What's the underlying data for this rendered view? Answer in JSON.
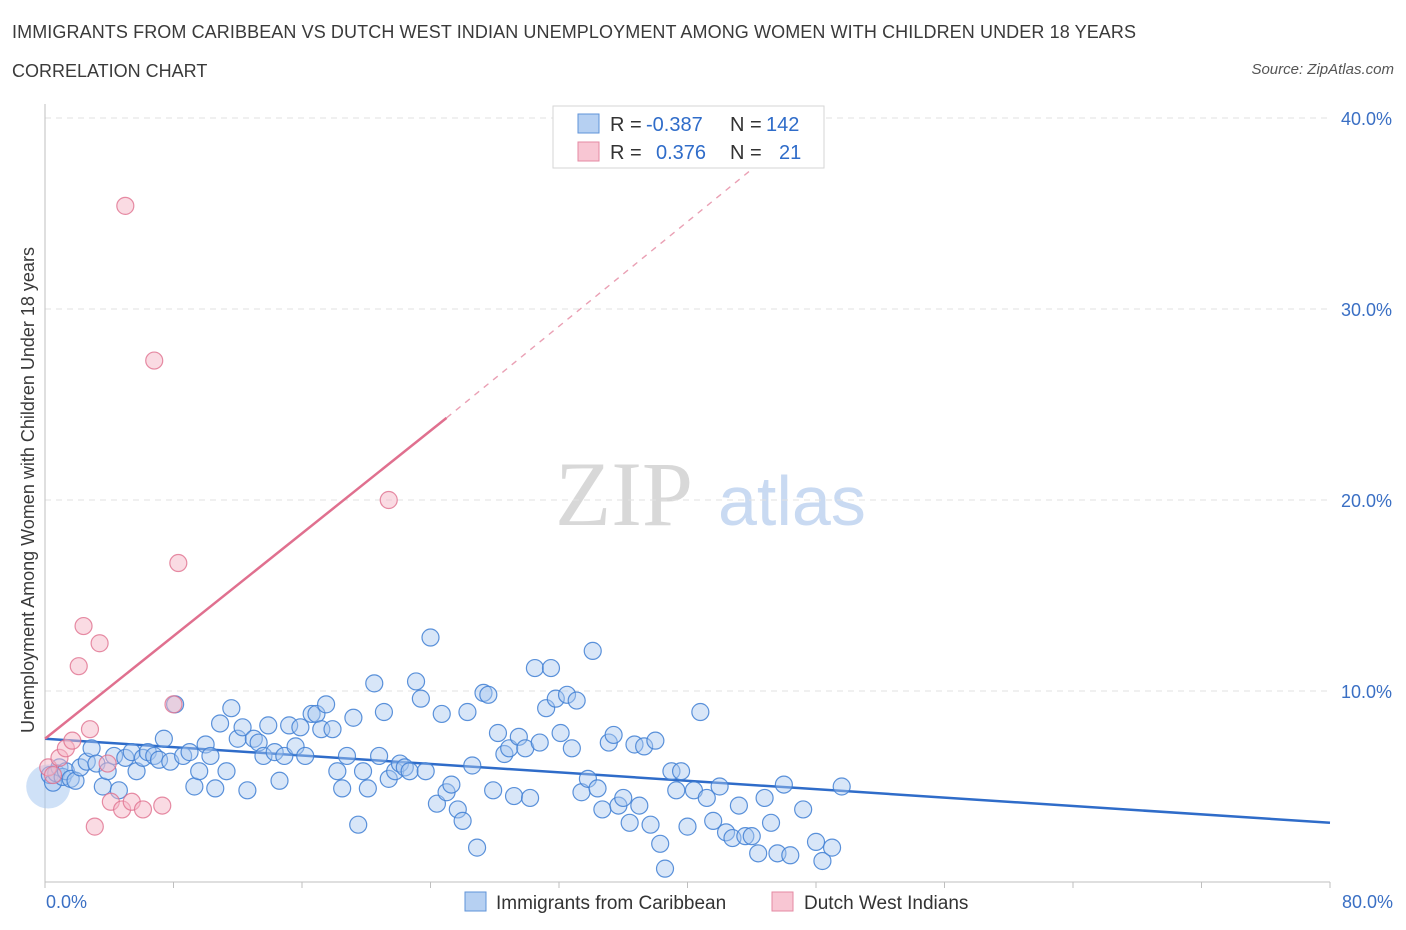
{
  "header": {
    "title": "IMMIGRANTS FROM CARIBBEAN VS DUTCH WEST INDIAN UNEMPLOYMENT AMONG WOMEN WITH CHILDREN UNDER 18 YEARS",
    "subtitle": "CORRELATION CHART",
    "source": "Source: ZipAtlas.com"
  },
  "watermark": {
    "zip": "ZIP",
    "atlas": "atlas"
  },
  "legend": {
    "series1": {
      "r_label": "R =",
      "r_value": "-0.387",
      "n_label": "N =",
      "n_value": "142"
    },
    "series2": {
      "r_label": "R =",
      "r_value": "0.376",
      "n_label": "N =",
      "n_value": "21"
    }
  },
  "bottom_legend": {
    "series1": "Immigrants from Caribbean",
    "series2": "Dutch West Indians"
  },
  "chart_data": {
    "type": "scatter",
    "xlabel": "",
    "ylabel": "Unemployment Among Women with Children Under 18 years",
    "xlim": [
      0,
      80
    ],
    "ylim": [
      0,
      40
    ],
    "x_tick_labels": [
      "0.0%",
      "80.0%"
    ],
    "y_tick_values": [
      10,
      20,
      30,
      40
    ],
    "y_tick_labels": [
      "10.0%",
      "20.0%",
      "30.0%",
      "40.0%"
    ],
    "grid": true,
    "colors": {
      "series1": "#3f7fd4",
      "series1_fill": "#a8c8f0",
      "series2": "#e0708f",
      "series2_fill": "#f5b8c8"
    },
    "series": [
      {
        "name": "Immigrants from Caribbean",
        "trend": [
          [
            0,
            7.5
          ],
          [
            80,
            3.1
          ]
        ],
        "points": [
          [
            0.3,
            5.6
          ],
          [
            0.5,
            5.2
          ],
          [
            0.7,
            5.7
          ],
          [
            0.9,
            6.0
          ],
          [
            1.1,
            5.5
          ],
          [
            1.3,
            5.8
          ],
          [
            1.6,
            5.4
          ],
          [
            1.9,
            5.3
          ],
          [
            2.2,
            6.0
          ],
          [
            2.6,
            6.3
          ],
          [
            2.9,
            7.0
          ],
          [
            3.2,
            6.2
          ],
          [
            3.6,
            5.0
          ],
          [
            3.9,
            5.8
          ],
          [
            4.3,
            6.6
          ],
          [
            4.6,
            4.8
          ],
          [
            5.0,
            6.5
          ],
          [
            5.4,
            6.8
          ],
          [
            5.7,
            5.8
          ],
          [
            6.1,
            6.5
          ],
          [
            6.4,
            6.8
          ],
          [
            6.8,
            6.6
          ],
          [
            7.1,
            6.4
          ],
          [
            7.4,
            7.5
          ],
          [
            7.8,
            6.3
          ],
          [
            8.1,
            9.3
          ],
          [
            8.6,
            6.6
          ],
          [
            9.0,
            6.8
          ],
          [
            9.3,
            5.0
          ],
          [
            9.6,
            5.8
          ],
          [
            10.0,
            7.2
          ],
          [
            10.3,
            6.6
          ],
          [
            10.6,
            4.9
          ],
          [
            10.9,
            8.3
          ],
          [
            11.3,
            5.8
          ],
          [
            11.6,
            9.1
          ],
          [
            12.0,
            7.5
          ],
          [
            12.3,
            8.1
          ],
          [
            12.6,
            4.8
          ],
          [
            13.0,
            7.5
          ],
          [
            13.3,
            7.3
          ],
          [
            13.6,
            6.6
          ],
          [
            13.9,
            8.2
          ],
          [
            14.3,
            6.8
          ],
          [
            14.6,
            5.3
          ],
          [
            14.9,
            6.6
          ],
          [
            15.2,
            8.2
          ],
          [
            15.6,
            7.1
          ],
          [
            15.9,
            8.1
          ],
          [
            16.2,
            6.6
          ],
          [
            16.6,
            8.8
          ],
          [
            16.9,
            8.8
          ],
          [
            17.2,
            8.0
          ],
          [
            17.5,
            9.3
          ],
          [
            17.9,
            8.0
          ],
          [
            18.2,
            5.8
          ],
          [
            18.5,
            4.9
          ],
          [
            18.8,
            6.6
          ],
          [
            19.2,
            8.6
          ],
          [
            19.5,
            3.0
          ],
          [
            19.8,
            5.8
          ],
          [
            20.1,
            4.9
          ],
          [
            20.5,
            10.4
          ],
          [
            20.8,
            6.6
          ],
          [
            21.1,
            8.9
          ],
          [
            21.4,
            5.4
          ],
          [
            21.8,
            5.8
          ],
          [
            22.1,
            6.2
          ],
          [
            22.4,
            6.0
          ],
          [
            22.7,
            5.8
          ],
          [
            23.1,
            10.5
          ],
          [
            23.4,
            9.6
          ],
          [
            23.7,
            5.8
          ],
          [
            24.0,
            12.8
          ],
          [
            24.4,
            4.1
          ],
          [
            24.7,
            8.8
          ],
          [
            25.0,
            4.7
          ],
          [
            25.3,
            5.1
          ],
          [
            25.7,
            3.8
          ],
          [
            26.0,
            3.2
          ],
          [
            26.3,
            8.9
          ],
          [
            26.6,
            6.1
          ],
          [
            26.9,
            1.8
          ],
          [
            27.3,
            9.9
          ],
          [
            27.6,
            9.8
          ],
          [
            27.9,
            4.8
          ],
          [
            28.2,
            7.8
          ],
          [
            28.6,
            6.7
          ],
          [
            28.9,
            7.0
          ],
          [
            29.2,
            4.5
          ],
          [
            29.5,
            7.6
          ],
          [
            29.9,
            7.0
          ],
          [
            30.2,
            4.4
          ],
          [
            30.5,
            11.2
          ],
          [
            30.8,
            7.3
          ],
          [
            31.2,
            9.1
          ],
          [
            31.5,
            11.2
          ],
          [
            31.8,
            9.6
          ],
          [
            32.1,
            7.8
          ],
          [
            32.5,
            9.8
          ],
          [
            32.8,
            7.0
          ],
          [
            33.1,
            9.5
          ],
          [
            33.4,
            4.7
          ],
          [
            33.8,
            5.4
          ],
          [
            34.1,
            12.1
          ],
          [
            34.4,
            4.9
          ],
          [
            34.7,
            3.8
          ],
          [
            35.1,
            7.3
          ],
          [
            35.4,
            7.7
          ],
          [
            35.7,
            4.0
          ],
          [
            36.0,
            4.4
          ],
          [
            36.4,
            3.1
          ],
          [
            36.7,
            7.2
          ],
          [
            37.0,
            4.0
          ],
          [
            37.3,
            7.1
          ],
          [
            37.7,
            3.0
          ],
          [
            38.0,
            7.4
          ],
          [
            38.3,
            2.0
          ],
          [
            38.6,
            0.7
          ],
          [
            39.0,
            5.8
          ],
          [
            39.3,
            4.8
          ],
          [
            39.6,
            5.8
          ],
          [
            40.0,
            2.9
          ],
          [
            40.4,
            4.8
          ],
          [
            40.8,
            8.9
          ],
          [
            41.2,
            4.4
          ],
          [
            41.6,
            3.2
          ],
          [
            42.0,
            5.0
          ],
          [
            42.4,
            2.6
          ],
          [
            42.8,
            2.3
          ],
          [
            43.2,
            4.0
          ],
          [
            43.6,
            2.4
          ],
          [
            44.0,
            2.4
          ],
          [
            44.4,
            1.5
          ],
          [
            44.8,
            4.4
          ],
          [
            45.2,
            3.1
          ],
          [
            45.6,
            1.5
          ],
          [
            46.0,
            5.1
          ],
          [
            46.4,
            1.4
          ],
          [
            47.2,
            3.8
          ],
          [
            48.0,
            2.1
          ],
          [
            48.4,
            1.1
          ],
          [
            49.0,
            1.8
          ],
          [
            49.6,
            5.0
          ]
        ]
      },
      {
        "name": "Dutch West Indians",
        "trend": [
          [
            0,
            7.5
          ],
          [
            25,
            24.3
          ]
        ],
        "trend_extension": [
          [
            25,
            24.3
          ],
          [
            45,
            38.0
          ]
        ],
        "points": [
          [
            0.2,
            6.0
          ],
          [
            0.5,
            5.6
          ],
          [
            0.9,
            6.5
          ],
          [
            1.3,
            7.0
          ],
          [
            1.7,
            7.4
          ],
          [
            2.1,
            11.3
          ],
          [
            2.4,
            13.4
          ],
          [
            2.8,
            8.0
          ],
          [
            3.1,
            2.9
          ],
          [
            3.4,
            12.5
          ],
          [
            3.9,
            6.2
          ],
          [
            4.1,
            4.2
          ],
          [
            4.8,
            3.8
          ],
          [
            5.0,
            35.4
          ],
          [
            5.4,
            4.2
          ],
          [
            6.1,
            3.8
          ],
          [
            6.8,
            27.3
          ],
          [
            7.3,
            4.0
          ],
          [
            8.0,
            9.3
          ],
          [
            8.3,
            16.7
          ],
          [
            21.4,
            20.0
          ]
        ]
      }
    ]
  }
}
